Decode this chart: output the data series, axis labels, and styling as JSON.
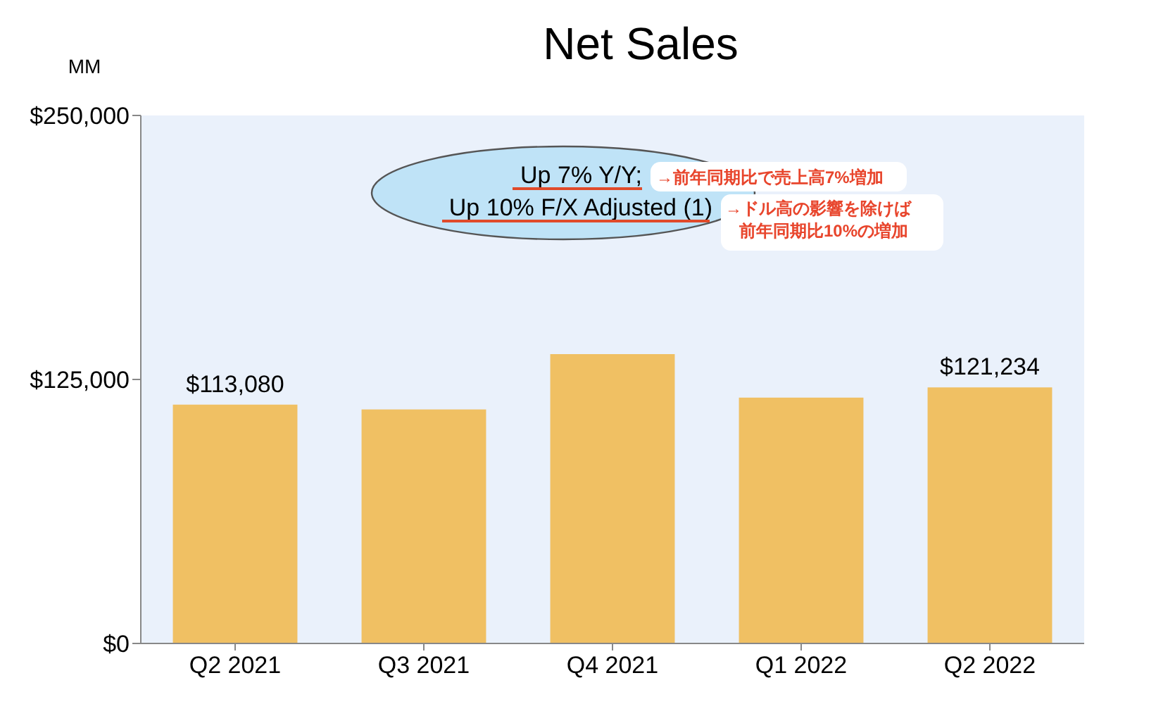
{
  "chart_data": {
    "type": "bar",
    "title": "Net Sales",
    "ylabel": "MM",
    "categories": [
      "Q2 2021",
      "Q3 2021",
      "Q4 2021",
      "Q1 2022",
      "Q2 2022"
    ],
    "values": [
      113080,
      110800,
      137000,
      116400,
      121234
    ],
    "value_labels": [
      "$113,080",
      null,
      null,
      null,
      "$121,234"
    ],
    "color": "#f0c063",
    "ylim": [
      0,
      250000
    ],
    "yticks": [
      {
        "value": 0,
        "label": "$0"
      },
      {
        "value": 125000,
        "label": "$125,000"
      },
      {
        "value": 250000,
        "label": "$250,000"
      }
    ],
    "grid": false,
    "annotations": [
      "Up 7% Y/Y;",
      "Up 10% F/X Adjusted (1)",
      "→前年同期比で売上高7%増加",
      "→ドル高の影響を除けば",
      "前年同期比10%の増加"
    ]
  }
}
